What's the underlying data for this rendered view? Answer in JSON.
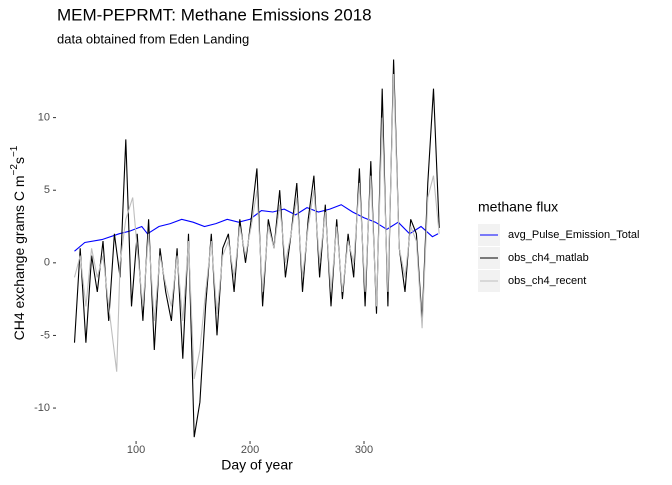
{
  "chart_data": {
    "type": "line",
    "title": "MEM-PEPRMT: Methane Emissions 2018",
    "subtitle": "data obtained from Eden Landing",
    "x_label": "Day of year",
    "y_label": {
      "text": "CH4 exchange grams C m",
      "sup1": "−2",
      "mid": "s",
      "sup2": "−1"
    },
    "legend_title": "methane flux",
    "xlim": [
      35,
      381.6
    ],
    "ylim": [
      -12.2,
      15.0
    ],
    "xticks": [
      100,
      200,
      300
    ],
    "yticks": [
      -10,
      -5,
      0,
      5,
      10
    ],
    "grid": false,
    "series": [
      {
        "name": "avg_Pulse_Emission_Total",
        "color": "#0000ff",
        "x": [
          46,
          55,
          70,
          85,
          95,
          105,
          110,
          120,
          130,
          140,
          150,
          160,
          170,
          180,
          190,
          200,
          210,
          220,
          230,
          240,
          250,
          260,
          270,
          280,
          290,
          300,
          310,
          320,
          330,
          340,
          350,
          360,
          365
        ],
        "values": [
          0.8,
          1.4,
          1.6,
          2.0,
          2.2,
          2.5,
          2.0,
          2.5,
          2.7,
          3.0,
          2.8,
          2.5,
          2.7,
          3.0,
          2.8,
          3.0,
          3.6,
          3.5,
          3.7,
          3.3,
          3.8,
          3.5,
          3.7,
          4.0,
          3.5,
          3.1,
          2.8,
          2.3,
          2.8,
          2.0,
          2.5,
          1.8,
          2.0
        ]
      },
      {
        "name": "obs_ch4_matlab",
        "color": "#000000",
        "x": [
          46,
          51,
          56,
          61,
          66,
          71,
          76,
          81,
          86,
          91,
          96,
          101,
          106,
          111,
          116,
          121,
          126,
          131,
          136,
          141,
          146,
          151,
          156,
          161,
          166,
          171,
          176,
          181,
          186,
          191,
          196,
          201,
          206,
          211,
          216,
          221,
          226,
          231,
          236,
          241,
          246,
          251,
          256,
          261,
          266,
          271,
          276,
          281,
          286,
          291,
          296,
          301,
          306,
          311,
          316,
          321,
          326,
          331,
          336,
          341,
          346,
          351,
          356,
          361,
          366
        ],
        "values": [
          -5.5,
          1,
          -5.5,
          0.5,
          -2,
          1.5,
          -4,
          2,
          -1,
          8.5,
          -3,
          2,
          -4,
          3,
          -6,
          1,
          -2,
          -4,
          1,
          -6.6,
          2,
          -12,
          -9.6,
          -3,
          2,
          -5,
          1,
          2,
          -2,
          3,
          0,
          3,
          6.5,
          -3,
          3,
          1,
          5,
          -1,
          2,
          5.5,
          -2,
          3,
          6,
          -1,
          4,
          -3,
          3,
          -2.5,
          2,
          -1,
          6.5,
          -3,
          7,
          -3.5,
          12,
          -3,
          14,
          1,
          -2,
          3,
          2,
          -4,
          5.5,
          12,
          2.4
        ]
      },
      {
        "name": "obs_ch4_recent",
        "color": "#bebebe",
        "x": [
          46,
          51,
          56,
          61,
          66,
          71,
          76,
          83,
          86,
          91,
          97,
          101,
          106,
          111,
          116,
          121,
          126,
          131,
          136,
          141,
          146,
          151,
          156,
          161,
          166,
          171,
          176,
          181,
          186,
          191,
          196,
          201,
          206,
          211,
          216,
          221,
          226,
          231,
          236,
          241,
          246,
          251,
          256,
          261,
          266,
          271,
          276,
          281,
          286,
          291,
          296,
          301,
          306,
          311,
          316,
          321,
          326,
          331,
          336,
          341,
          346,
          351,
          356,
          361,
          366
        ],
        "values": [
          -1,
          0.5,
          -3,
          1,
          -1,
          0.5,
          -3,
          -7.5,
          0,
          3,
          4.5,
          1,
          -3,
          2,
          -4,
          0.5,
          -1.5,
          -3,
          0.5,
          -4,
          1.5,
          -8,
          -6,
          -2,
          1.5,
          -3.5,
          0.5,
          1.5,
          -1,
          2.5,
          0.5,
          2.5,
          5,
          -2,
          2.5,
          1,
          4,
          0,
          2,
          4.5,
          -1,
          2.5,
          5,
          0,
          3.5,
          -2,
          2.5,
          -2,
          1.5,
          0,
          5.5,
          -2,
          6,
          -3,
          10,
          -2,
          13,
          1,
          -1,
          2.5,
          1.5,
          -4.5,
          4.5,
          6,
          2
        ]
      }
    ]
  }
}
